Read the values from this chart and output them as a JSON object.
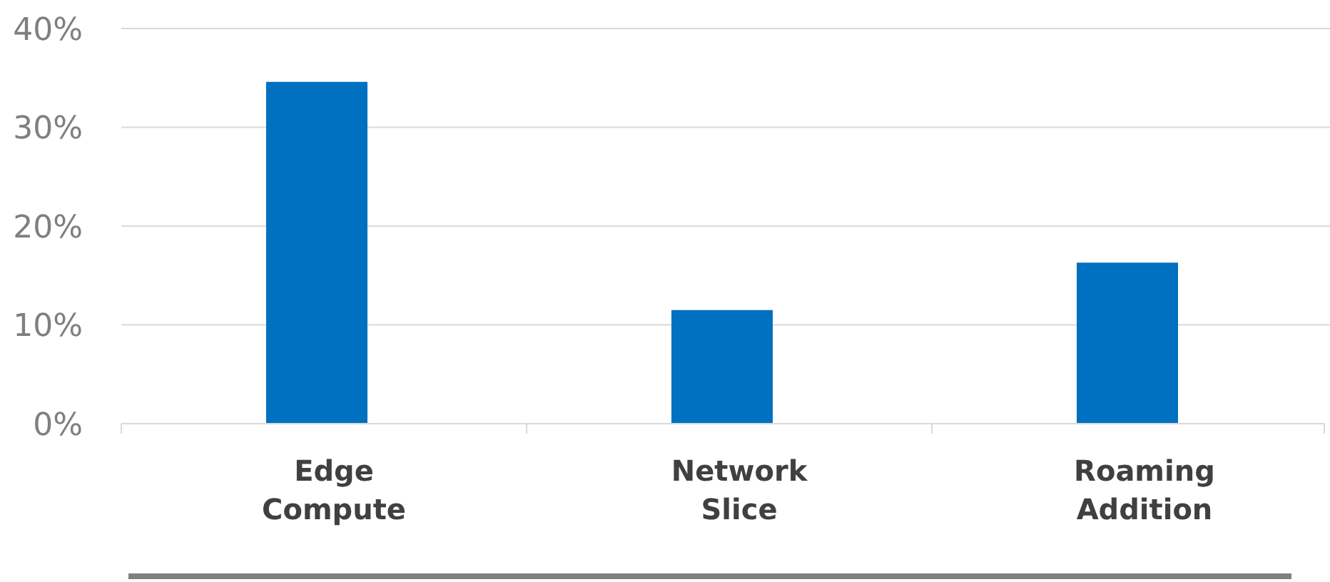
{
  "chart_data": {
    "type": "bar",
    "categories": [
      "Edge\nCompute",
      "Network\nSlice",
      "Roaming\nAddition"
    ],
    "values": [
      34.6,
      11.5,
      16.3
    ],
    "color": "#0070c0",
    "ylim": [
      0,
      40
    ],
    "yticks": [
      {
        "value": 0,
        "label": "0%"
      },
      {
        "value": 10,
        "label": "10%"
      },
      {
        "value": 20,
        "label": "20%"
      },
      {
        "value": 30,
        "label": "30%"
      },
      {
        "value": 40,
        "label": "40%"
      }
    ],
    "grid": "y"
  }
}
